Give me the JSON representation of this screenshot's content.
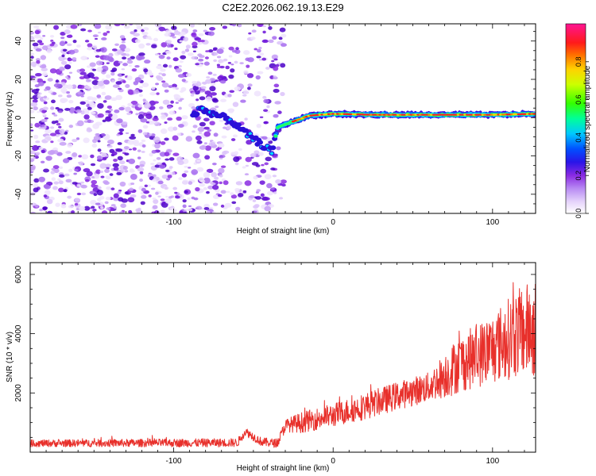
{
  "figure_title": "C2E2.2026.062.19.13.E29",
  "chart_data": [
    {
      "type": "heatmap",
      "title": "C2E2.2026.062.19.13.E29",
      "xlabel": "Height of straight line (km)",
      "ylabel": "Frequency (Hz)",
      "xlim": [
        -190,
        127
      ],
      "ylim": [
        -50,
        49
      ],
      "x_ticks": [
        -100,
        0,
        100
      ],
      "x_tick_labels": [
        "-100",
        "0",
        "100"
      ],
      "y_ticks": [
        -40,
        -20,
        0,
        20,
        40
      ],
      "y_tick_labels": [
        "-40",
        "-20",
        "0",
        "20",
        "40"
      ],
      "colorbar": {
        "label": "Normalized spectral amplitude",
        "range": [
          0,
          1
        ],
        "ticks": [
          0.0,
          0.2,
          0.4,
          0.6,
          0.8
        ],
        "tick_labels": [
          "0.0",
          "0.2",
          "0.4",
          "0.6",
          "0.8"
        ],
        "colormap": [
          "#f4ecfc",
          "#c9a6f5",
          "#8a2be2",
          "#1010e0",
          "#00c8ff",
          "#00ff66",
          "#ccff00",
          "#ffcc00",
          "#ff2020",
          "#ff1493"
        ]
      },
      "noise_region_x": [
        -190,
        -35
      ],
      "signal_track": [
        {
          "x": -85,
          "y": 5
        },
        {
          "x": -75,
          "y": 2
        },
        {
          "x": -65,
          "y": -1
        },
        {
          "x": -55,
          "y": -8
        },
        {
          "x": -45,
          "y": -14
        },
        {
          "x": -38,
          "y": -18
        },
        {
          "x": -35,
          "y": -5
        },
        {
          "x": -25,
          "y": -2
        },
        {
          "x": -15,
          "y": 1
        },
        {
          "x": 0,
          "y": 2
        },
        {
          "x": 25,
          "y": 1.5
        },
        {
          "x": 50,
          "y": 1.5
        },
        {
          "x": 75,
          "y": 1.5
        },
        {
          "x": 100,
          "y": 1.5
        },
        {
          "x": 127,
          "y": 2
        }
      ]
    },
    {
      "type": "line",
      "xlabel": "Height of straight line (km)",
      "ylabel": "SNR (10 * v/v)",
      "xlim": [
        -190,
        127
      ],
      "ylim": [
        0,
        6400
      ],
      "x_ticks": [
        -100,
        0,
        100
      ],
      "x_tick_labels": [
        "-100",
        "0",
        "100"
      ],
      "y_ticks": [
        2000,
        4000,
        6000
      ],
      "y_tick_labels": [
        "2000",
        "4000",
        "6000"
      ],
      "series": [
        {
          "name": "SNR",
          "color": "#e8302b",
          "trend": [
            {
              "x": -190,
              "y": 300
            },
            {
              "x": -60,
              "y": 320
            },
            {
              "x": -55,
              "y": 700
            },
            {
              "x": -45,
              "y": 350
            },
            {
              "x": -35,
              "y": 300
            },
            {
              "x": -30,
              "y": 900
            },
            {
              "x": -20,
              "y": 1000
            },
            {
              "x": 0,
              "y": 1250
            },
            {
              "x": 20,
              "y": 1550
            },
            {
              "x": 40,
              "y": 1900
            },
            {
              "x": 60,
              "y": 2200
            },
            {
              "x": 80,
              "y": 3000
            },
            {
              "x": 100,
              "y": 3500
            },
            {
              "x": 115,
              "y": 4000
            },
            {
              "x": 127,
              "y": 4200
            }
          ],
          "spread": [
            {
              "x": -190,
              "y": 120
            },
            {
              "x": -35,
              "y": 150
            },
            {
              "x": -20,
              "y": 350
            },
            {
              "x": 20,
              "y": 450
            },
            {
              "x": 60,
              "y": 500
            },
            {
              "x": 75,
              "y": 900
            },
            {
              "x": 100,
              "y": 1200
            },
            {
              "x": 127,
              "y": 1700
            }
          ]
        }
      ]
    }
  ]
}
